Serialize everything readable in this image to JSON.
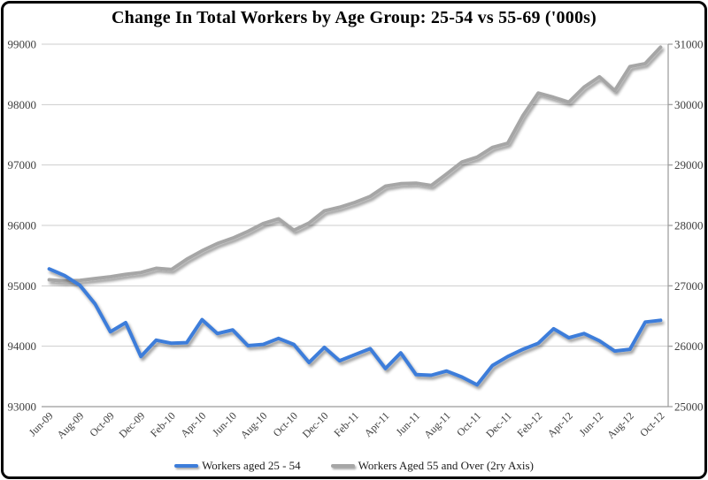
{
  "chart_data": {
    "type": "line",
    "title": "Change In Total Workers by Age Group: 25-54 vs 55-69 ('000s)",
    "x": [
      "Jun-09",
      "Jul-09",
      "Aug-09",
      "Sep-09",
      "Oct-09",
      "Nov-09",
      "Dec-09",
      "Jan-10",
      "Feb-10",
      "Mar-10",
      "Apr-10",
      "May-10",
      "Jun-10",
      "Jul-10",
      "Aug-10",
      "Sep-10",
      "Oct-10",
      "Nov-10",
      "Dec-10",
      "Jan-11",
      "Feb-11",
      "Mar-11",
      "Apr-11",
      "May-11",
      "Jun-11",
      "Jul-11",
      "Aug-11",
      "Sep-11",
      "Oct-11",
      "Nov-11",
      "Dec-11",
      "Jan-12",
      "Feb-12",
      "Mar-12",
      "Apr-12",
      "May-12",
      "Jun-12",
      "Jul-12",
      "Aug-12",
      "Sep-12",
      "Oct-12"
    ],
    "x_tick_step": 2,
    "series": [
      {
        "name": "Workers aged 25 - 54",
        "axis": "left",
        "color": "#3d7dda",
        "values": [
          95280,
          95170,
          95010,
          94700,
          94240,
          94390,
          93830,
          94100,
          94050,
          94060,
          94440,
          94210,
          94270,
          94010,
          94030,
          94130,
          94030,
          93730,
          93980,
          93760,
          93860,
          93960,
          93630,
          93890,
          93530,
          93520,
          93590,
          93490,
          93360,
          93680,
          93830,
          93950,
          94050,
          94290,
          94140,
          94210,
          94090,
          93920,
          93950,
          94400,
          94430
        ]
      },
      {
        "name": "Workers Aged 55 and Over (2ry Axis)",
        "axis": "right",
        "color": "#a6a6a6",
        "values": [
          27100,
          27080,
          27090,
          27120,
          27150,
          27190,
          27220,
          27290,
          27270,
          27440,
          27580,
          27700,
          27790,
          27900,
          28030,
          28110,
          27920,
          28040,
          28240,
          28300,
          28380,
          28480,
          28650,
          28690,
          28700,
          28660,
          28850,
          29050,
          29130,
          29290,
          29360,
          29820,
          30190,
          30120,
          30040,
          30290,
          30460,
          30230,
          30630,
          30680,
          30950
        ]
      }
    ],
    "left_axis": {
      "min": 93000,
      "max": 99000,
      "ticks": [
        "99000",
        "98000",
        "97000",
        "96000",
        "95000",
        "94000",
        "93000"
      ]
    },
    "right_axis": {
      "min": 25000,
      "max": 31000,
      "ticks": [
        "31000",
        "30000",
        "29000",
        "28000",
        "27000",
        "26000",
        "25000"
      ]
    },
    "grid": true,
    "grid_color": "#cdcdcd",
    "axis_color": "#9a9a9a",
    "legend_position": "bottom"
  }
}
